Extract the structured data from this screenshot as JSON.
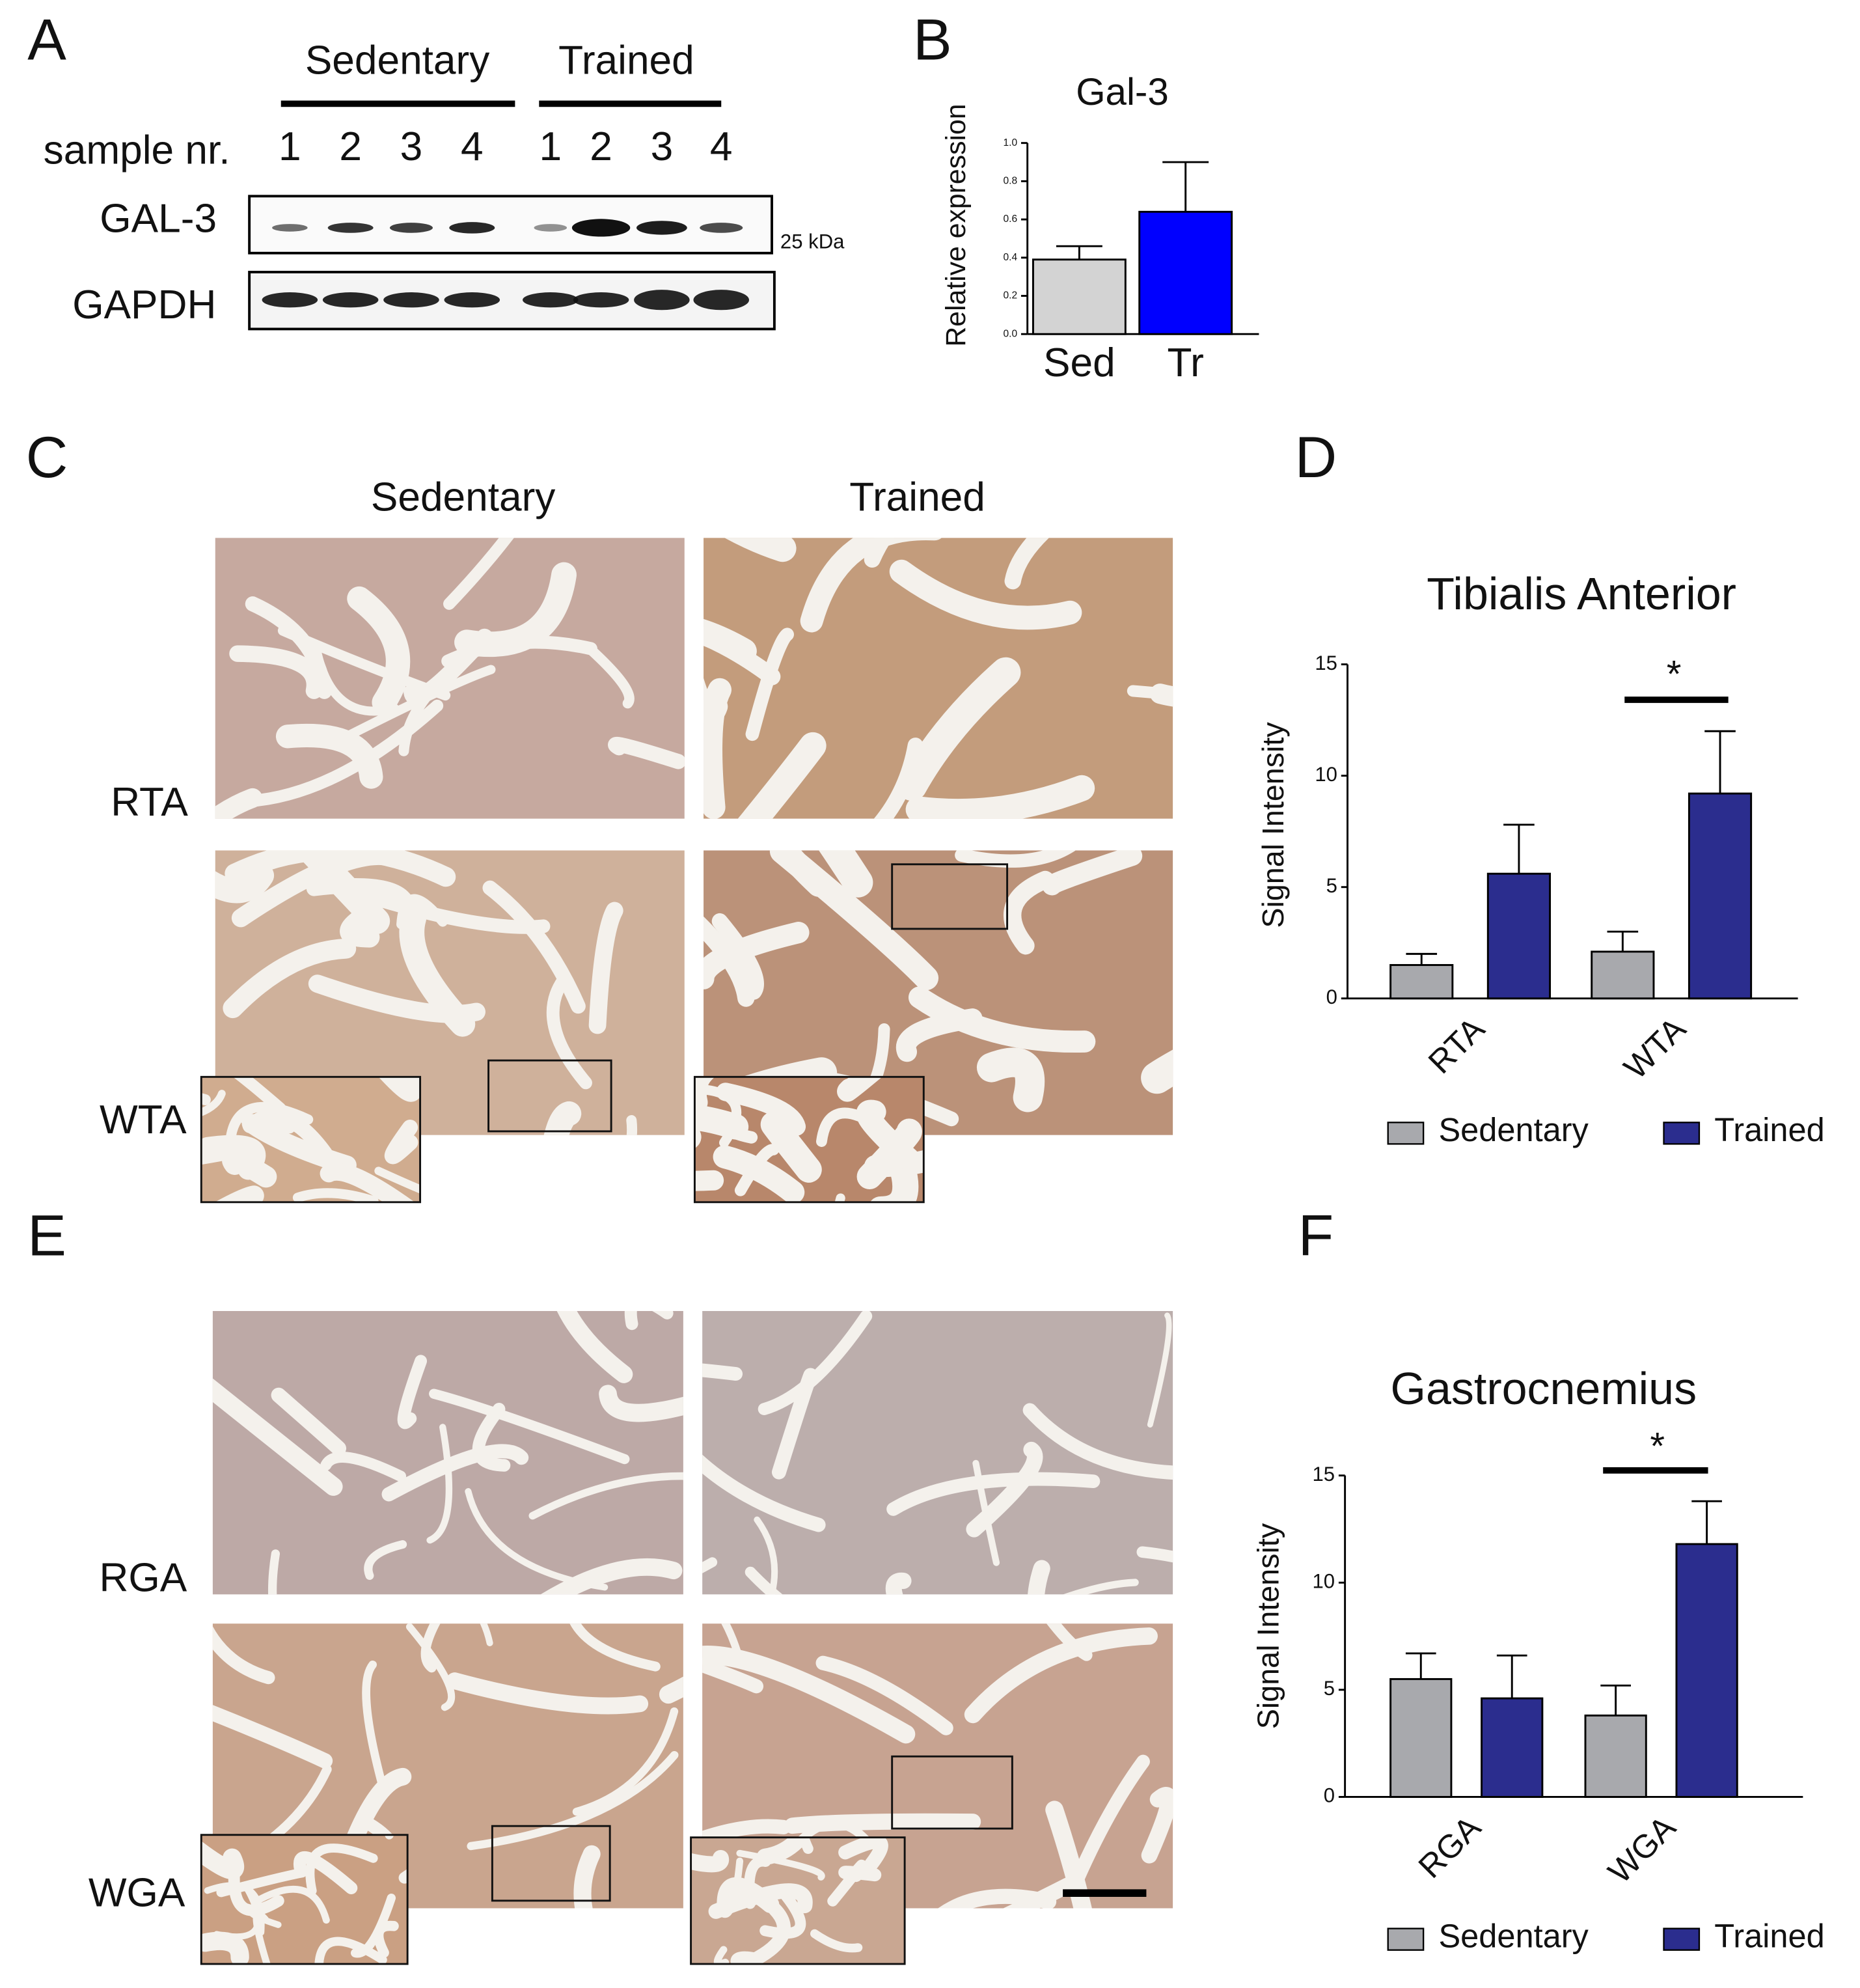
{
  "figure": {
    "panel_labels": [
      "A",
      "B",
      "C",
      "D",
      "E",
      "F"
    ],
    "blot": {
      "groups": [
        "Sedentary",
        "Trained"
      ],
      "sample_label": "sample nr.",
      "samples": [
        "1",
        "2",
        "3",
        "4",
        "1",
        "2",
        "3",
        "4"
      ],
      "rows": [
        "GAL-3",
        "GAPDH"
      ],
      "marker": "25 kDa"
    },
    "histology": {
      "columns": [
        "Sedentary",
        "Trained"
      ],
      "rows_c": [
        "RTA",
        "WTA"
      ],
      "rows_e": [
        "RGA",
        "WGA"
      ]
    }
  },
  "chart_data": [
    {
      "type": "bar",
      "title": "Gal-3",
      "y_label": "Relative expression",
      "categories": [
        "Sed",
        "Tr"
      ],
      "values": [
        0.39,
        0.64
      ],
      "errors": [
        0.07,
        0.26
      ],
      "colors": [
        "#d3d3d3",
        "#0000ff"
      ],
      "ylim": [
        0,
        1.0
      ],
      "yticks": [
        {
          "value": 0,
          "label": "0.0"
        },
        {
          "value": 0.2,
          "label": "0.2"
        },
        {
          "value": 0.4,
          "label": "0.4"
        },
        {
          "value": 0.6,
          "label": "0.6"
        },
        {
          "value": 0.8,
          "label": "0.8"
        },
        {
          "value": 1.0,
          "label": "1.0"
        }
      ]
    },
    {
      "type": "grouped-bar",
      "title": "Tibialis Anterior",
      "y_label": "Signal Intensity",
      "categories": [
        "RTA",
        "WTA"
      ],
      "series": [
        {
          "name": "Sedentary",
          "color": "#a8a9ad",
          "values": [
            1.5,
            2.1
          ],
          "errors": [
            0.5,
            0.9
          ]
        },
        {
          "name": "Trained",
          "color": "#2b2d8e",
          "values": [
            5.6,
            9.2
          ],
          "errors": [
            2.2,
            2.8
          ]
        }
      ],
      "annotation": "*",
      "ylim": [
        0,
        15
      ],
      "yticks": [
        0,
        5,
        10,
        15
      ],
      "legend": "bottom"
    },
    {
      "type": "grouped-bar",
      "title": "Gastrocnemius",
      "y_label": "Signal Intensity",
      "categories": [
        "RGA",
        "WGA"
      ],
      "series": [
        {
          "name": "Sedentary",
          "color": "#a8a9ad",
          "values": [
            5.5,
            3.8
          ],
          "errors": [
            1.2,
            1.4
          ]
        },
        {
          "name": "Trained",
          "color": "#2b2d8e",
          "values": [
            4.6,
            11.8
          ],
          "errors": [
            2.0,
            2.0
          ]
        }
      ],
      "annotation": "*",
      "ylim": [
        0,
        15
      ],
      "yticks": [
        0,
        5,
        10,
        15
      ],
      "legend": "bottom"
    }
  ]
}
